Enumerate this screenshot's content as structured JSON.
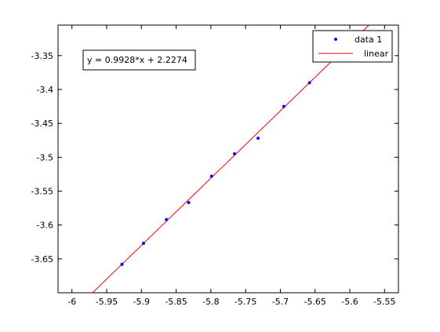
{
  "chart_data": {
    "type": "scatter",
    "title": "",
    "xlabel": "",
    "ylabel": "",
    "xlim": [
      -6.02,
      -5.53
    ],
    "ylim": [
      -3.7,
      -3.305
    ],
    "grid": false,
    "legend_position": "top-right",
    "x_ticks": [
      -6,
      -5.95,
      -5.9,
      -5.85,
      -5.8,
      -5.75,
      -5.7,
      -5.65,
      -5.6,
      -5.55
    ],
    "x_tick_labels": [
      "-6",
      "-5.95",
      "-5.9",
      "-5.85",
      "-5.8",
      "-5.75",
      "-5.7",
      "-5.65",
      "-5.6",
      "-5.55"
    ],
    "y_ticks": [
      -3.65,
      -3.6,
      -3.55,
      -3.5,
      -3.45,
      -3.4,
      -3.35
    ],
    "y_tick_labels": [
      "-3.65",
      "-3.6",
      "-3.55",
      "-3.5",
      "-3.45",
      "-3.4",
      "-3.35"
    ],
    "series": [
      {
        "name": "data 1",
        "kind": "points",
        "color": "#0000ff",
        "x": [
          -5.928,
          -5.897,
          -5.864,
          -5.832,
          -5.799,
          -5.766,
          -5.732,
          -5.695,
          -5.658
        ],
        "y": [
          -3.658,
          -3.627,
          -3.592,
          -3.567,
          -3.528,
          -3.495,
          -3.472,
          -3.425,
          -3.39
        ]
      },
      {
        "name": "linear",
        "kind": "line",
        "color": "#ff0000",
        "slope": 0.9928,
        "intercept": 2.2274
      }
    ],
    "annotation": "y = 0.9928*x + 2.2274"
  }
}
